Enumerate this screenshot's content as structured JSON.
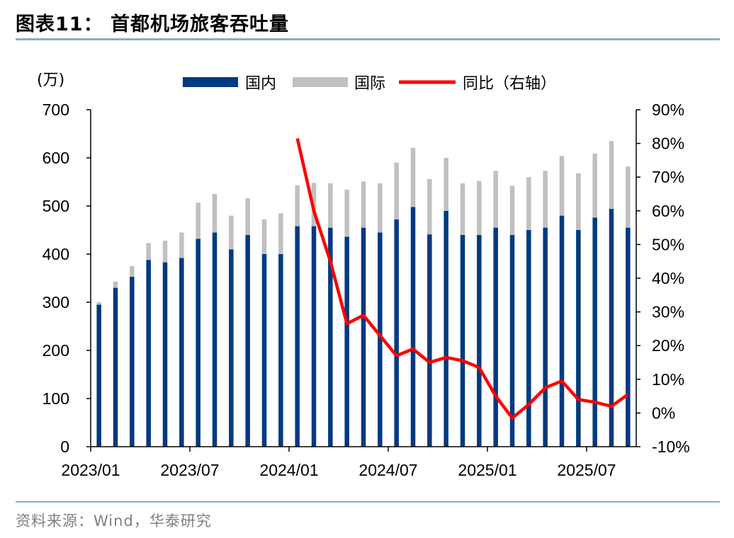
{
  "title": "图表11：  首都机场旅客吞吐量",
  "source": "资料来源：Wind，华泰研究",
  "chart_data": {
    "type": "bar",
    "stacked": true,
    "left_unit": "(万)",
    "ylim_left": [
      0,
      700
    ],
    "yticks_left": [
      0,
      100,
      200,
      300,
      400,
      500,
      600,
      700
    ],
    "ylim_right": [
      -10,
      90
    ],
    "yticks_right": [
      "-10%",
      "0%",
      "10%",
      "20%",
      "30%",
      "40%",
      "50%",
      "60%",
      "70%",
      "80%",
      "90%"
    ],
    "x_tick_labels": [
      "2023/01",
      "2023/07",
      "2024/01",
      "2024/07",
      "2025/01",
      "2025/07"
    ],
    "x_tick_indices": [
      0,
      6,
      12,
      18,
      24,
      30
    ],
    "months": [
      "2023/01",
      "2023/02",
      "2023/03",
      "2023/04",
      "2023/05",
      "2023/06",
      "2023/07",
      "2023/08",
      "2023/09",
      "2023/10",
      "2023/11",
      "2023/12",
      "2024/01",
      "2024/02",
      "2024/03",
      "2024/04",
      "2024/05",
      "2024/06",
      "2024/07",
      "2024/08",
      "2024/09",
      "2024/10",
      "2024/11",
      "2024/12",
      "2025/01",
      "2025/02",
      "2025/03",
      "2025/04",
      "2025/05",
      "2025/06",
      "2025/07",
      "2025/08",
      "2025/09"
    ],
    "series": [
      {
        "name": "国内",
        "color": "#003a80",
        "values": [
          295,
          330,
          353,
          388,
          383,
          392,
          432,
          445,
          410,
          440,
          400,
          400,
          458,
          458,
          455,
          436,
          455,
          445,
          472,
          498,
          441,
          490,
          440,
          440,
          455,
          440,
          450,
          455,
          480,
          450,
          476,
          494,
          455
        ]
      },
      {
        "name": "国际",
        "color": "#c0c0c0",
        "values": [
          5,
          13,
          22,
          35,
          45,
          53,
          75,
          80,
          70,
          76,
          72,
          85,
          85,
          90,
          92,
          98,
          96,
          102,
          118,
          123,
          115,
          110,
          107,
          112,
          118,
          102,
          110,
          118,
          124,
          118,
          133,
          141,
          127
        ]
      },
      {
        "name": "同比（右轴）",
        "color": "#ff0000",
        "axis": "right",
        "values": [
          null,
          null,
          null,
          null,
          null,
          null,
          null,
          null,
          null,
          null,
          null,
          null,
          81.5,
          60,
          45,
          26.5,
          29,
          23,
          17,
          19,
          15,
          16.5,
          15.5,
          13.5,
          5,
          -1.5,
          2.5,
          7.5,
          9.5,
          4,
          3.2,
          2,
          5.5
        ]
      }
    ],
    "legend": "top",
    "grid": false
  }
}
